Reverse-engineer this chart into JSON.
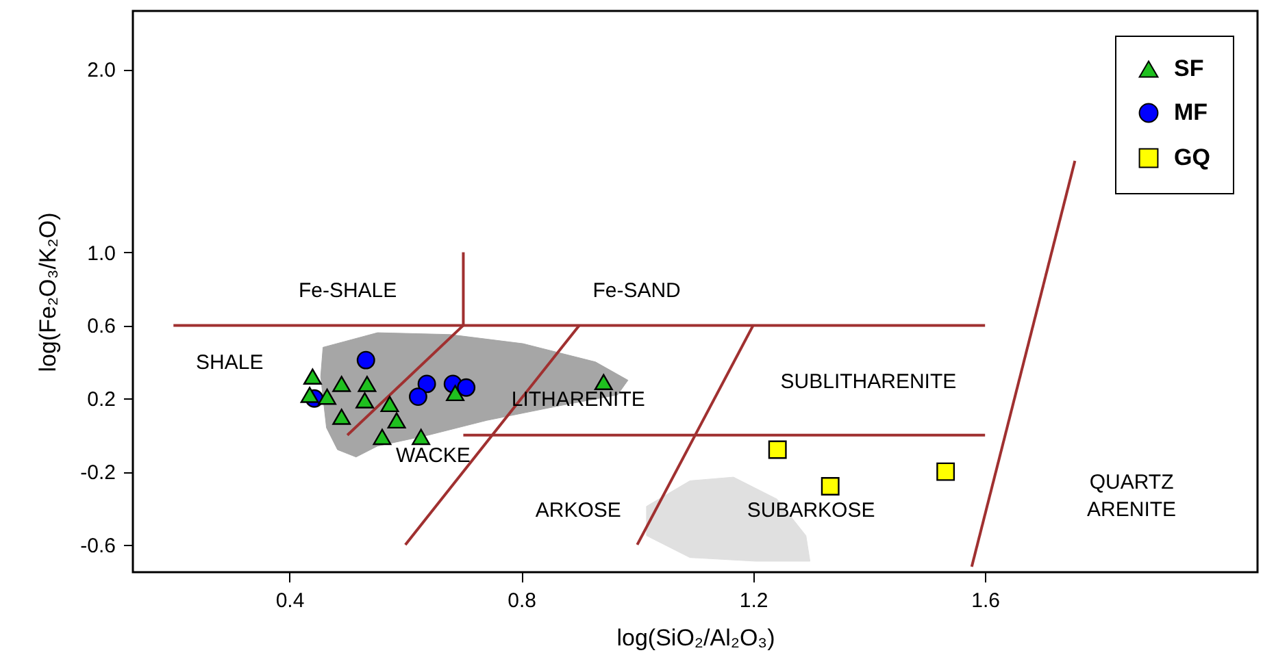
{
  "chart_data": {
    "type": "scatter",
    "xlabel": "log(SiO₂/Al₂O₃)",
    "ylabel": "log(Fe₂O₃/K₂O)",
    "xlim": [
      0.13,
      2.07
    ],
    "ylim": [
      -0.75,
      2.32
    ],
    "xticks": [
      0.4,
      0.8,
      1.2,
      1.6
    ],
    "yticks": [
      -0.6,
      -0.2,
      0.2,
      0.6,
      {
        "value": 1,
        "label": "1.0"
      },
      {
        "value": 2,
        "label": "2.0"
      }
    ],
    "grid": false,
    "legend": "top right",
    "series": [
      {
        "type": "area",
        "color": "#a6a6a6",
        "x": [
          0.458,
          0.552,
          0.677,
          0.803,
          0.928,
          0.984,
          0.966,
          0.865,
          0.74,
          0.64,
          0.552,
          0.515,
          0.483,
          0.464,
          0.454
        ],
        "values": [
          0.48,
          0.56,
          0.55,
          0.5,
          0.4,
          0.3,
          0.22,
          0.16,
          0.08,
          0.0,
          -0.06,
          -0.12,
          -0.08,
          0.04,
          0.32
        ]
      },
      {
        "type": "area",
        "color": "#e0e0e0",
        "x": [
          1.016,
          1.091,
          1.166,
          1.241,
          1.291,
          1.298,
          1.204,
          1.091,
          1.016
        ],
        "values": [
          -0.39,
          -0.25,
          -0.23,
          -0.35,
          -0.55,
          -0.69,
          -0.69,
          -0.67,
          -0.55
        ]
      },
      {
        "type": "line",
        "color": "#a03030",
        "x": [
          0.2,
          1.6
        ],
        "values": [
          0.6,
          0.6
        ]
      },
      {
        "type": "line",
        "color": "#a03030",
        "x": [
          0.7,
          0.7
        ],
        "values": [
          0.6,
          1.0
        ]
      },
      {
        "type": "line",
        "color": "#a03030",
        "x": [
          0.5,
          0.7
        ],
        "values": [
          0.0,
          0.6
        ]
      },
      {
        "type": "line",
        "color": "#a03030",
        "x": [
          0.6,
          0.9
        ],
        "values": [
          -0.6,
          0.6
        ]
      },
      {
        "type": "line",
        "color": "#a03030",
        "x": [
          1.0,
          1.2
        ],
        "values": [
          -0.6,
          0.6
        ]
      },
      {
        "type": "line",
        "color": "#a03030",
        "x": [
          0.7,
          1.6
        ],
        "values": [
          0.0,
          0.0
        ]
      },
      {
        "type": "line",
        "color": "#a03030",
        "x": [
          1.577,
          1.755
        ],
        "values": [
          -0.72,
          1.5
        ]
      },
      {
        "type": "scatter",
        "name": "SF",
        "color": "#1fc01f",
        "marker": "triangle",
        "x": [
          0.44,
          0.435,
          0.465,
          0.49,
          0.534,
          0.53,
          0.49,
          0.573,
          0.585,
          0.56,
          0.627,
          0.686,
          0.942
        ],
        "values": [
          0.32,
          0.22,
          0.21,
          0.28,
          0.28,
          0.19,
          0.1,
          0.17,
          0.08,
          -0.01,
          -0.01,
          0.23,
          0.29
        ]
      },
      {
        "type": "scatter",
        "name": "MF",
        "color": "#0000ff",
        "marker": "circle",
        "x": [
          0.532,
          0.443,
          0.637,
          0.622,
          0.682,
          0.705
        ],
        "values": [
          0.41,
          0.2,
          0.28,
          0.21,
          0.28,
          0.26
        ]
      },
      {
        "type": "scatter",
        "name": "GQ",
        "color": "#ffff00",
        "marker": "square",
        "x": [
          1.242,
          1.333,
          1.532
        ],
        "values": [
          -0.08,
          -0.28,
          -0.2
        ]
      }
    ],
    "annotations": [
      "Fe-SHALE",
      "Fe-SAND",
      "SHALE",
      "LITHARENITE",
      "WACKE",
      "SUBLITHARENITE",
      "ARKOSE",
      "SUBARKOSE",
      "QUARTZ\nARENITE"
    ]
  }
}
